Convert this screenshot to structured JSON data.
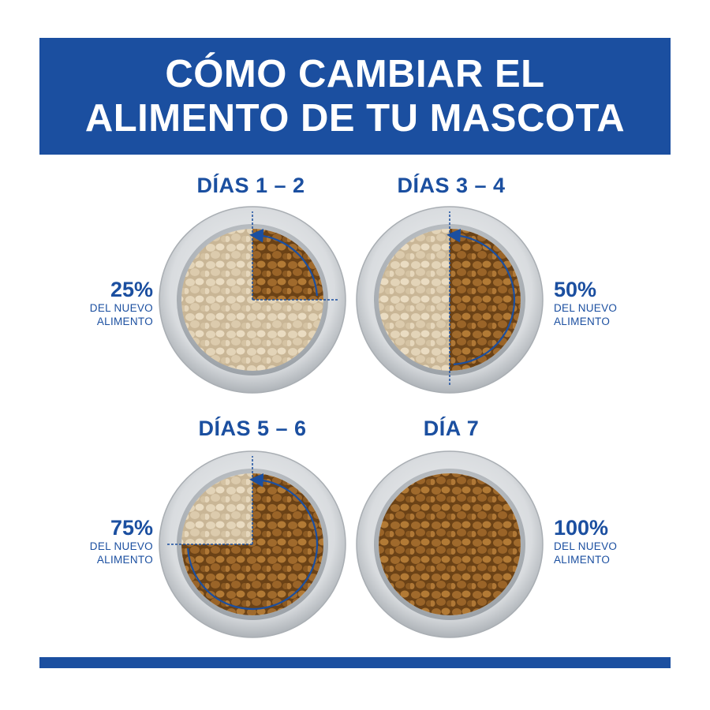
{
  "title": {
    "line1": "CÓMO CAMBIAR EL",
    "line2": "ALIMENTO DE TU MASCOTA"
  },
  "panels": [
    {
      "day_label": "DÍAS 1 – 2",
      "percent": "25%",
      "caption_line1": "DEL NUEVO",
      "caption_line2": "ALIMENTO",
      "new_food_fraction": 0.25
    },
    {
      "day_label": "DÍAS 3 – 4",
      "percent": "50%",
      "caption_line1": "DEL NUEVO",
      "caption_line2": "ALIMENTO",
      "new_food_fraction": 0.5
    },
    {
      "day_label": "DÍAS 5 – 6",
      "percent": "75%",
      "caption_line1": "DEL NUEVO",
      "caption_line2": "ALIMENTO",
      "new_food_fraction": 0.75
    },
    {
      "day_label": "DÍA 7",
      "percent": "100%",
      "caption_line1": "DEL NUEVO",
      "caption_line2": "ALIMENTO",
      "new_food_fraction": 1.0
    }
  ],
  "colors": {
    "brand_blue": "#1b4fa0",
    "new_food": "#8a5a22",
    "old_food": "#d9c8a8",
    "bowl_rim": "#c4c8cc"
  }
}
